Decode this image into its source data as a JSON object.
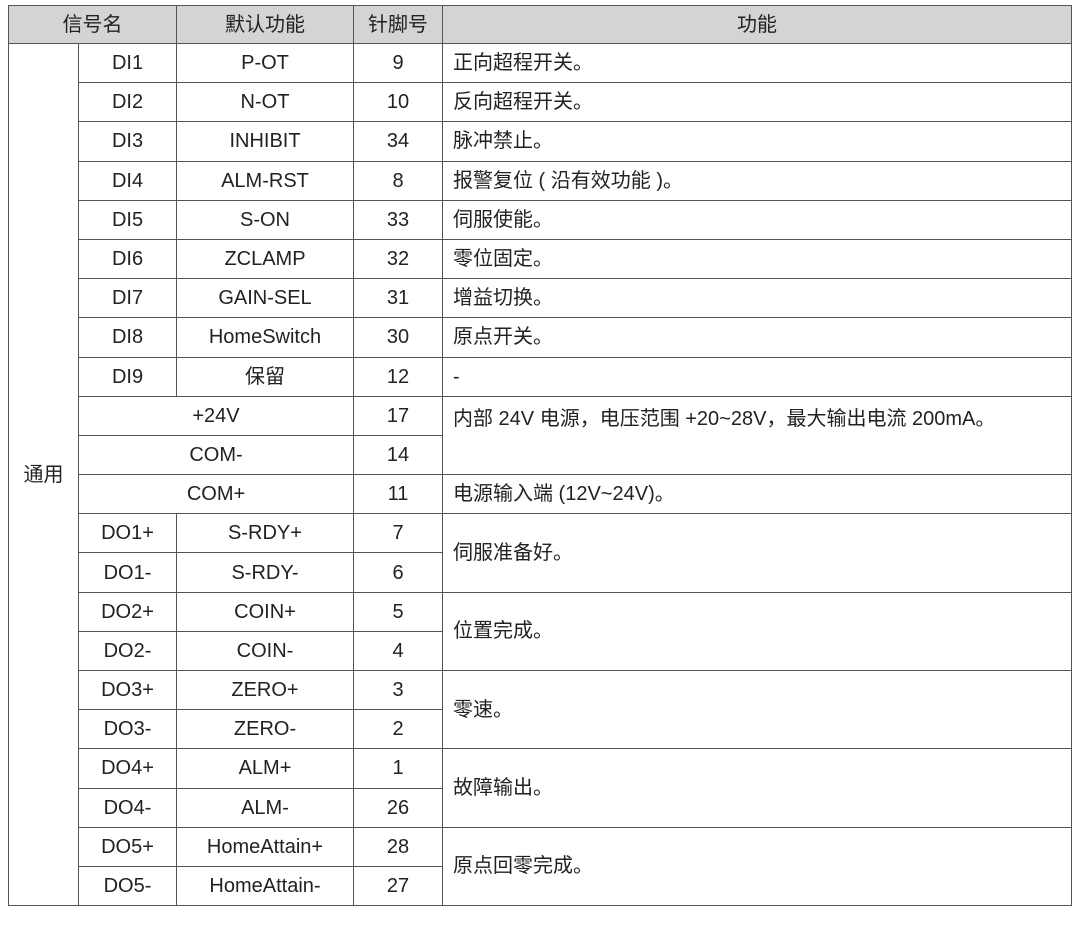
{
  "header": {
    "signal_name": "信号名",
    "default_function": "默认功能",
    "pin": "针脚号",
    "function": "功能"
  },
  "group_label": "通用",
  "di_rows": [
    {
      "signal": "DI1",
      "default": "P-OT",
      "pin": "9",
      "function": "正向超程开关。"
    },
    {
      "signal": "DI2",
      "default": "N-OT",
      "pin": "10",
      "function": "反向超程开关。"
    },
    {
      "signal": "DI3",
      "default": "INHIBIT",
      "pin": "34",
      "function": "脉冲禁止。"
    },
    {
      "signal": "DI4",
      "default": "ALM-RST",
      "pin": "8",
      "function": "报警复位 ( 沿有效功能 )。"
    },
    {
      "signal": "DI5",
      "default": "S-ON",
      "pin": "33",
      "function": "伺服使能。"
    },
    {
      "signal": "DI6",
      "default": "ZCLAMP",
      "pin": "32",
      "function": "零位固定。"
    },
    {
      "signal": "DI7",
      "default": "GAIN-SEL",
      "pin": "31",
      "function": "增益切换。"
    },
    {
      "signal": "DI8",
      "default": "HomeSwitch",
      "pin": "30",
      "function": "原点开关。"
    },
    {
      "signal": "DI9",
      "default": "保留",
      "pin": "12",
      "function": "-"
    }
  ],
  "power_rows": [
    {
      "signal": "+24V",
      "pin": "17",
      "function": "内部 24V 电源，电压范围 +20~28V，最大输出电流 200mA。"
    },
    {
      "signal": "COM-",
      "pin": "14"
    },
    {
      "signal": "COM+",
      "pin": "11",
      "function": "电源输入端 (12V~24V)。"
    }
  ],
  "do_groups": [
    {
      "function": "伺服准备好。",
      "rows": [
        {
          "signal": "DO1+",
          "default": "S-RDY+",
          "pin": "7"
        },
        {
          "signal": "DO1-",
          "default": "S-RDY-",
          "pin": "6"
        }
      ]
    },
    {
      "function": "位置完成。",
      "rows": [
        {
          "signal": "DO2+",
          "default": "COIN+",
          "pin": "5"
        },
        {
          "signal": "DO2-",
          "default": "COIN-",
          "pin": "4"
        }
      ]
    },
    {
      "function": "零速。",
      "rows": [
        {
          "signal": "DO3+",
          "default": "ZERO+",
          "pin": "3"
        },
        {
          "signal": "DO3-",
          "default": "ZERO-",
          "pin": "2"
        }
      ]
    },
    {
      "function": "故障输出。",
      "rows": [
        {
          "signal": "DO4+",
          "default": "ALM+",
          "pin": "1"
        },
        {
          "signal": "DO4-",
          "default": "ALM-",
          "pin": "26"
        }
      ]
    },
    {
      "function": "原点回零完成。",
      "rows": [
        {
          "signal": "DO5+",
          "default": "HomeAttain+",
          "pin": "28"
        },
        {
          "signal": "DO5-",
          "default": "HomeAttain-",
          "pin": "27"
        }
      ]
    }
  ]
}
